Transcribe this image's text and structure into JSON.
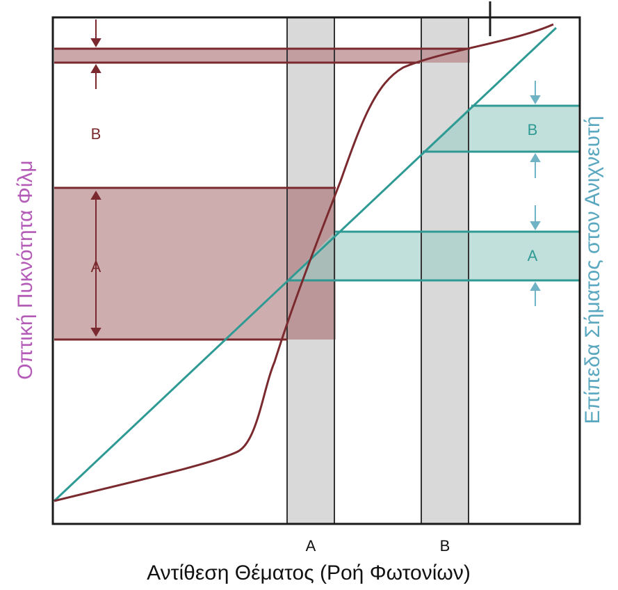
{
  "colors": {
    "film_curve": "#7a2a2e",
    "film_band_fill": "#b98a8c",
    "detector_line": "#2e9a93",
    "detector_band_fill": "#9fd0c8",
    "vertical_band_fill": "#c9c9c9",
    "frame": "#1a1a1a",
    "left_axis_label": "#b45bb8",
    "right_axis_label": "#5aa7c0",
    "x_axis_label": "#111111"
  },
  "labels": {
    "x_axis": "Αντίθεση Θέματος (Ροή Φωτονίων)",
    "y_axis_left": "Οπτική Πυκνότητα Φίλμ",
    "y_axis_right": "Επίπεδα Σήματος στον Ανιχνευτή",
    "x_band_a": "A",
    "x_band_b": "B",
    "film_band_a": "A",
    "film_band_b": "B",
    "detector_band_a": "A",
    "detector_band_b": "B"
  }
}
